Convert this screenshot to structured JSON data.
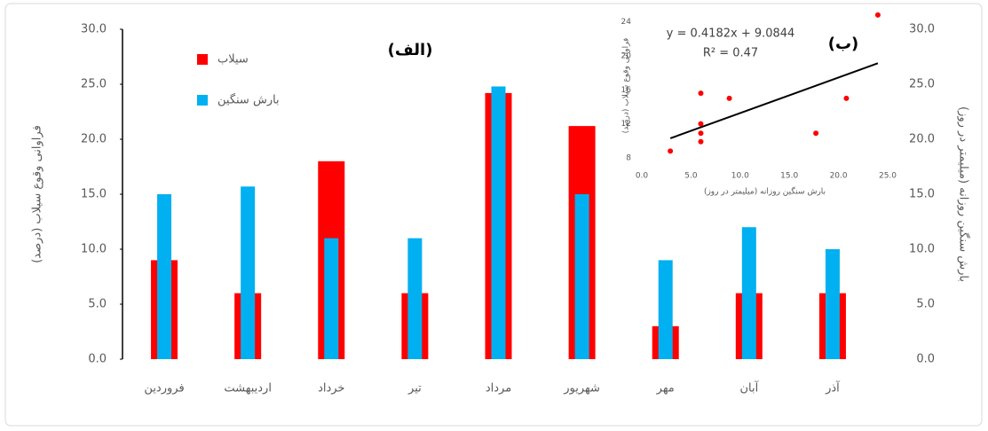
{
  "chart_data": [
    {
      "type": "bar",
      "title": "(الف)",
      "y_label": "فراوانی وقوع سیلاب (درصد)",
      "y2_label": "بارش سنگین روزانه (میلیمتر در روز)",
      "categories": [
        "فروردین",
        "اردیبهشت",
        "خرداد",
        "تیر",
        "مرداد",
        "شهریور",
        "مهر",
        "آبان",
        "آذر"
      ],
      "series": [
        {
          "name": "سیلاب",
          "color": "#ff0000",
          "values": [
            9,
            6,
            18,
            6,
            24.2,
            21.2,
            3,
            6,
            6
          ]
        },
        {
          "name": "بارش سنگین",
          "color": "#00b0f0",
          "axis": "y2",
          "values": [
            15,
            15.7,
            11,
            11,
            24.8,
            15,
            9,
            12,
            10
          ]
        }
      ],
      "ylim": [
        0,
        30
      ],
      "yticks": [
        {
          "value": 0,
          "label": "0.0"
        },
        {
          "value": 5,
          "label": "5.0"
        },
        {
          "value": 10,
          "label": "10.0"
        },
        {
          "value": 15,
          "label": "15.0"
        },
        {
          "value": 20,
          "label": "20.0"
        },
        {
          "value": 25,
          "label": "25.0"
        },
        {
          "value": 30,
          "label": "30.0"
        }
      ],
      "y2lim": [
        0,
        30
      ],
      "y2ticks": [
        {
          "value": 0,
          "label": "0.0"
        },
        {
          "value": 5,
          "label": "5.0"
        },
        {
          "value": 10,
          "label": "10.0"
        },
        {
          "value": 15,
          "label": "15.0"
        },
        {
          "value": 20,
          "label": "20.0"
        },
        {
          "value": 25,
          "label": "25.0"
        },
        {
          "value": 30,
          "label": "30.0"
        }
      ],
      "legend": "top-left"
    },
    {
      "type": "scatter",
      "title": "(ب)",
      "x_label": "بارش سنگین روزانه (میلیمتر در روز)",
      "y_label": "فراوانی وقوع سیلاب (درصد)",
      "x": [
        2.9,
        6,
        6,
        6,
        6,
        8.9,
        17.7,
        20.8,
        24
      ],
      "values": [
        8.8,
        15.6,
        12,
        10.9,
        9.9,
        15,
        10.9,
        15,
        24.8
      ],
      "color": "#ff0000",
      "trendline": {
        "label": "y = 0.4182x + 9.0844",
        "r2_label": "R² = 0.47",
        "slope": 0.4182,
        "intercept": 9.0844,
        "color": "#000000"
      },
      "xlim": [
        0,
        25
      ],
      "xticks": [
        {
          "value": 0,
          "label": "0.0"
        },
        {
          "value": 5,
          "label": "5.0"
        },
        {
          "value": 10,
          "label": "10.0"
        },
        {
          "value": 15,
          "label": "15.0"
        },
        {
          "value": 20,
          "label": "20.0"
        },
        {
          "value": 25,
          "label": "25.0"
        }
      ],
      "ylim": [
        8,
        25
      ],
      "yticks": [
        8,
        12,
        16,
        20,
        24
      ]
    }
  ]
}
